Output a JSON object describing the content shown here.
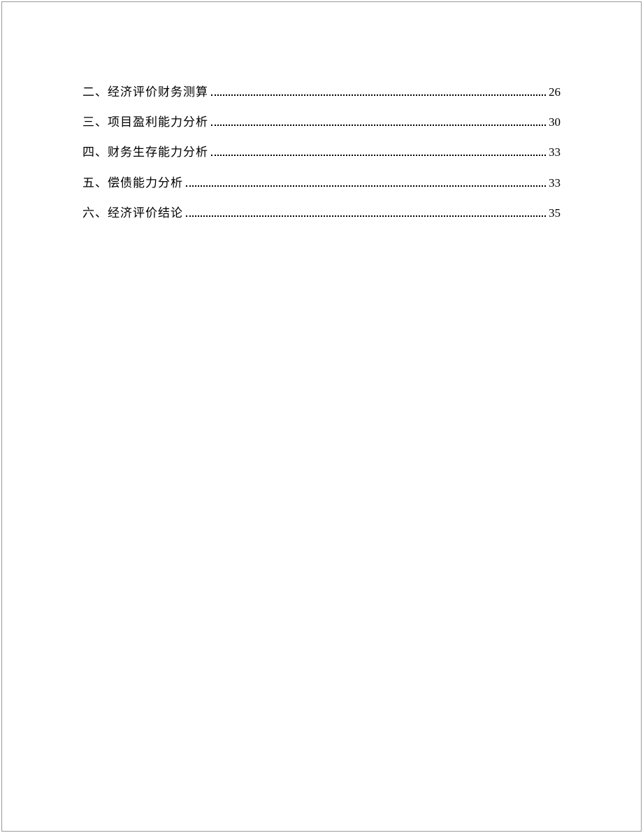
{
  "toc": {
    "entries": [
      {
        "label": "二、经济评价财务测算",
        "page": "26"
      },
      {
        "label": "三、项目盈利能力分析",
        "page": "30"
      },
      {
        "label": "四、财务生存能力分析",
        "page": "33"
      },
      {
        "label": "五、偿债能力分析",
        "page": "33"
      },
      {
        "label": "六、经济评价结论",
        "page": "35"
      }
    ]
  },
  "style": {
    "background_color": "#ffffff",
    "text_color": "#000000",
    "border_color": "#999999",
    "font_size": 17,
    "line_spacing": 16
  }
}
